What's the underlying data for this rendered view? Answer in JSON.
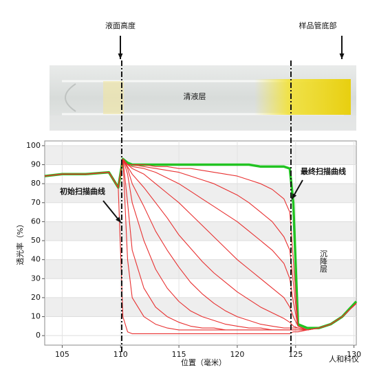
{
  "chart_data": {
    "type": "line",
    "x_label": "位置（毫米）",
    "y_label": "透光率（%）",
    "annotations": [
      "液面高度",
      "样品管底部",
      "清液层",
      "最终扫描曲线",
      "初始扫描曲线",
      "沉降层",
      "人和科仪"
    ],
    "xlim": [
      103.5,
      130.2
    ],
    "ylim": [
      -5,
      102.5
    ],
    "xticks": [
      105,
      110,
      115,
      120,
      125,
      130
    ],
    "yticks": [
      0,
      10,
      20,
      30,
      40,
      50,
      60,
      70,
      80,
      90,
      100
    ],
    "grid": true,
    "reference_x": [
      110.1,
      124.6
    ],
    "x": [
      103.5,
      105,
      107,
      109,
      109.8,
      110.2,
      110.6,
      111,
      112,
      113,
      114,
      115,
      116,
      117,
      118,
      119,
      120,
      121,
      122,
      123,
      124,
      124.5,
      124.8,
      125.2,
      126,
      127,
      128,
      129,
      130.2
    ],
    "series": [
      {
        "color": "#22c322",
        "values": [
          84,
          85,
          85,
          86,
          78,
          93,
          91,
          90,
          90,
          90,
          90,
          90,
          90,
          90,
          90,
          90,
          90,
          90,
          89,
          89,
          89,
          88,
          70,
          6,
          4,
          4,
          6,
          10,
          18
        ]
      },
      {
        "color": "#e83030",
        "values": [
          84,
          85,
          85,
          86,
          78,
          10,
          2,
          1,
          1,
          1,
          1,
          1,
          1,
          1,
          1,
          1,
          1,
          1,
          1,
          1,
          1,
          1,
          2,
          2,
          3,
          4,
          6,
          10,
          17
        ]
      },
      {
        "color": "#e83030",
        "values": [
          84,
          85,
          85,
          86,
          78,
          93,
          40,
          20,
          10,
          6,
          4,
          3,
          3,
          3,
          3,
          3,
          3,
          3,
          3,
          3,
          3,
          3,
          3,
          3,
          3,
          4,
          6,
          10,
          17
        ]
      },
      {
        "color": "#e83030",
        "values": [
          84,
          85,
          85,
          86,
          78,
          93,
          70,
          45,
          25,
          15,
          10,
          7,
          5,
          4,
          4,
          3,
          3,
          3,
          3,
          3,
          3,
          3,
          3,
          3,
          3,
          4,
          6,
          10,
          17
        ]
      },
      {
        "color": "#e83030",
        "values": [
          84,
          85,
          85,
          86,
          78,
          93,
          85,
          70,
          50,
          35,
          25,
          18,
          13,
          10,
          8,
          6,
          5,
          4,
          4,
          3,
          3,
          3,
          3,
          3,
          3,
          4,
          6,
          10,
          17
        ]
      },
      {
        "color": "#e83030",
        "values": [
          84,
          85,
          85,
          86,
          78,
          93,
          88,
          80,
          68,
          55,
          45,
          36,
          28,
          22,
          17,
          13,
          10,
          8,
          6,
          5,
          4,
          4,
          4,
          4,
          3,
          4,
          6,
          10,
          17
        ]
      },
      {
        "color": "#e83030",
        "values": [
          84,
          85,
          85,
          86,
          78,
          93,
          89,
          85,
          78,
          70,
          62,
          53,
          46,
          39,
          33,
          28,
          23,
          19,
          15,
          12,
          9,
          7,
          5,
          4,
          3,
          4,
          6,
          10,
          17
        ]
      },
      {
        "color": "#e83030",
        "values": [
          84,
          85,
          85,
          86,
          78,
          93,
          90,
          88,
          85,
          80,
          75,
          70,
          64,
          58,
          52,
          46,
          40,
          35,
          30,
          25,
          20,
          15,
          10,
          5,
          3,
          4,
          6,
          10,
          17
        ]
      },
      {
        "color": "#e83030",
        "values": [
          84,
          85,
          85,
          86,
          78,
          93,
          90,
          89,
          88,
          86,
          83,
          80,
          76,
          72,
          68,
          64,
          60,
          55,
          50,
          45,
          38,
          30,
          18,
          5,
          3,
          4,
          6,
          10,
          17
        ]
      },
      {
        "color": "#e83030",
        "values": [
          84,
          85,
          85,
          86,
          78,
          93,
          90,
          90,
          89,
          88,
          87,
          86,
          84,
          82,
          80,
          77,
          74,
          70,
          65,
          60,
          52,
          45,
          28,
          5,
          3,
          4,
          6,
          10,
          17
        ]
      },
      {
        "color": "#e83030",
        "values": [
          84,
          85,
          85,
          86,
          78,
          93,
          90,
          90,
          90,
          89,
          89,
          88,
          88,
          87,
          86,
          85,
          84,
          82,
          80,
          77,
          72,
          65,
          40,
          5,
          3,
          4,
          6,
          10,
          17
        ]
      }
    ]
  }
}
